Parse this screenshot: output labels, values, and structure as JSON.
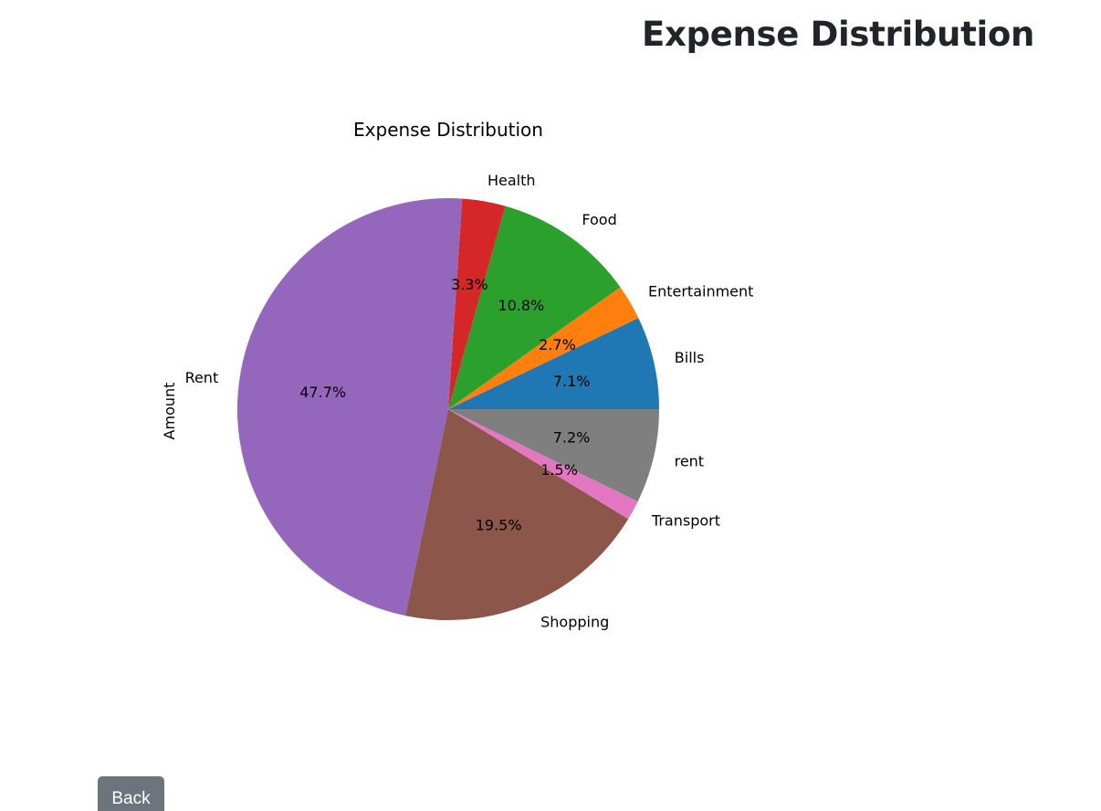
{
  "page": {
    "heading": "Expense Distribution",
    "back_label": "Back"
  },
  "chart_data": {
    "type": "pie",
    "title": "Expense Distribution",
    "ylabel": "Amount",
    "start_angle_deg": 0,
    "direction": "counterclockwise",
    "slices": [
      {
        "label": "Bills",
        "percent": 7.1,
        "pct_label": "7.1%",
        "color": "#1f77b4"
      },
      {
        "label": "Entertainment",
        "percent": 2.7,
        "pct_label": "2.7%",
        "color": "#ff7f0e"
      },
      {
        "label": "Food",
        "percent": 10.8,
        "pct_label": "10.8%",
        "color": "#2ca02c"
      },
      {
        "label": "Health",
        "percent": 3.3,
        "pct_label": "3.3%",
        "color": "#d62728"
      },
      {
        "label": "Rent",
        "percent": 47.7,
        "pct_label": "47.7%",
        "color": "#9467bd"
      },
      {
        "label": "Shopping",
        "percent": 19.5,
        "pct_label": "19.5%",
        "color": "#8c564b"
      },
      {
        "label": "Transport",
        "percent": 1.5,
        "pct_label": "1.5%",
        "color": "#e377c2"
      },
      {
        "label": "rent",
        "percent": 7.2,
        "pct_label": "7.2%",
        "color": "#7f7f7f"
      }
    ]
  }
}
